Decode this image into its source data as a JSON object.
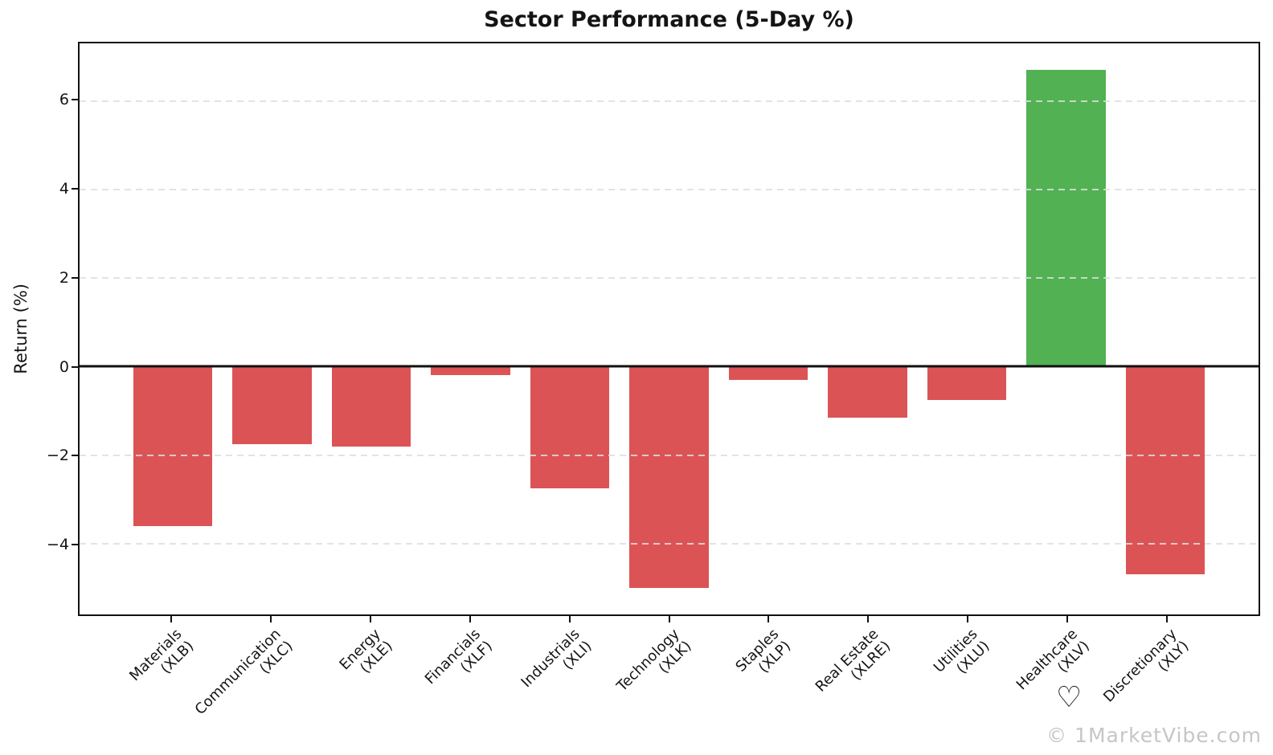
{
  "figure": {
    "watermark": "© 1MarketVibe.com",
    "logo_icon": "heart-outline-icon"
  },
  "chart_data": {
    "type": "bar",
    "title": "Sector Performance (5-Day %)",
    "xlabel": "",
    "ylabel": "Return (%)",
    "categories": [
      {
        "sector": "Materials",
        "ticker": "(XLB)"
      },
      {
        "sector": "Communication",
        "ticker": "(XLC)"
      },
      {
        "sector": "Energy",
        "ticker": "(XLE)"
      },
      {
        "sector": "Financials",
        "ticker": "(XLF)"
      },
      {
        "sector": "Industrials",
        "ticker": "(XLI)"
      },
      {
        "sector": "Technology",
        "ticker": "(XLK)"
      },
      {
        "sector": "Staples",
        "ticker": "(XLP)"
      },
      {
        "sector": "Real Estate",
        "ticker": "(XLRE)"
      },
      {
        "sector": "Utilities",
        "ticker": "(XLU)"
      },
      {
        "sector": "Healthcare",
        "ticker": "(XLV)"
      },
      {
        "sector": "Discretionary",
        "ticker": "(XLY)"
      }
    ],
    "values": [
      -3.6,
      -1.75,
      -1.8,
      -0.2,
      -2.75,
      -5.0,
      -0.3,
      -1.15,
      -0.75,
      6.7,
      -4.7
    ],
    "yticks": [
      -4,
      -2,
      0,
      2,
      4,
      6
    ],
    "ylim": [
      -5.6,
      7.3
    ],
    "bar_width_fraction": 0.8,
    "colors": {
      "positive": "#52b152",
      "negative": "#dc5356",
      "grid": "#dedede",
      "axis": "#111111",
      "watermark": "#c6c6c6"
    },
    "grid": {
      "axis": "y",
      "style": "dashed"
    },
    "zero_line": true,
    "legend": null
  }
}
